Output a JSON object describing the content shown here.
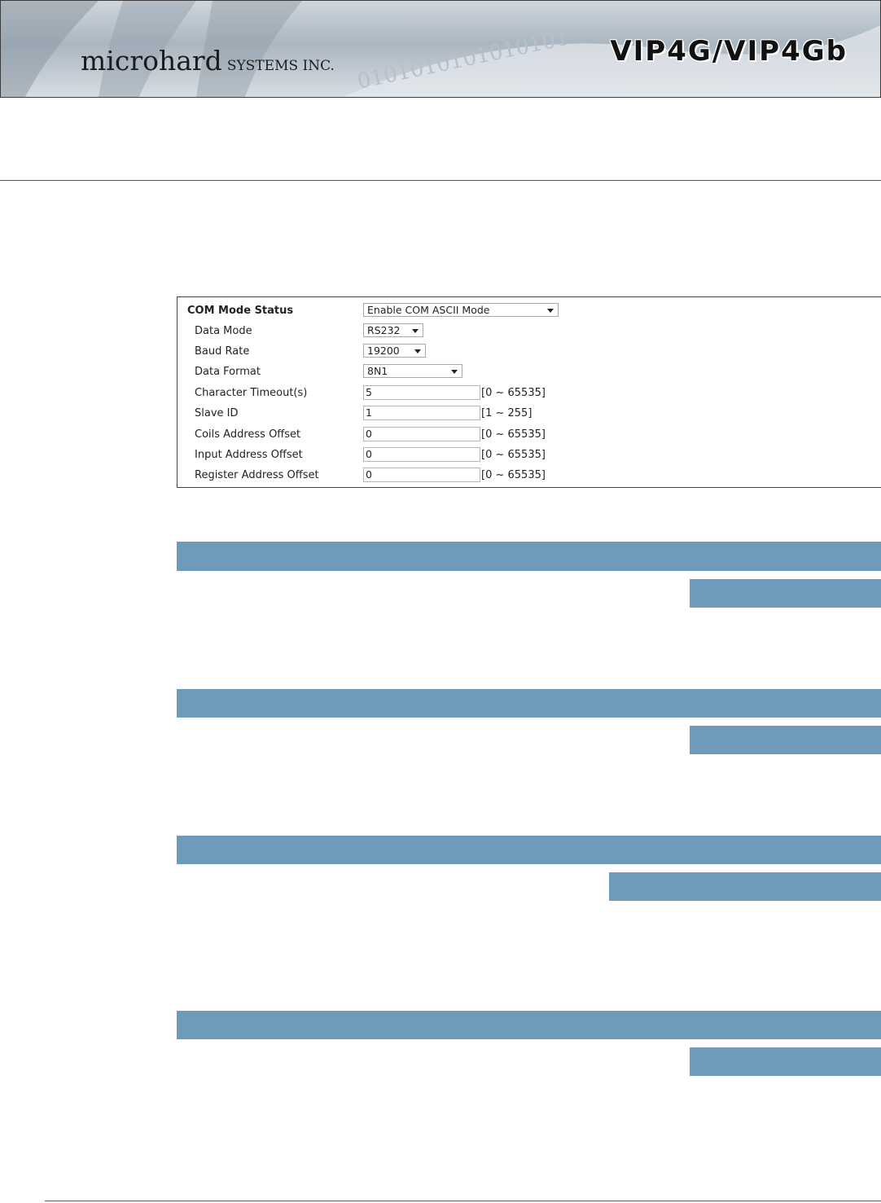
{
  "header": {
    "brand": "microhard",
    "brand_suffix": "SYSTEMS INC.",
    "product": "VIP4G/VIP4Gb",
    "binary_art": "0101010101010101"
  },
  "panel": {
    "com_mode_status": {
      "label": "COM Mode Status",
      "value": "Enable COM ASCII Mode"
    },
    "data_mode": {
      "label": "Data Mode",
      "value": "RS232"
    },
    "baud_rate": {
      "label": "Baud Rate",
      "value": "19200"
    },
    "data_format": {
      "label": "Data Format",
      "value": "8N1"
    },
    "char_timeout": {
      "label": "Character Timeout(s)",
      "value": "5",
      "range": "[0 ~ 65535]"
    },
    "slave_id": {
      "label": "Slave ID",
      "value": "1",
      "range": "[1 ~ 255]"
    },
    "coils_offset": {
      "label": "Coils Address Offset",
      "value": "0",
      "range": "[0 ~ 65535]"
    },
    "input_offset": {
      "label": "Input Address Offset",
      "value": "0",
      "range": "[0 ~ 65535]"
    },
    "register_offset": {
      "label": "Register Address Offset",
      "value": "0",
      "range": "[0 ~ 65535]"
    }
  },
  "colors": {
    "bar": "#6e9bbb",
    "rule": "#555555"
  }
}
